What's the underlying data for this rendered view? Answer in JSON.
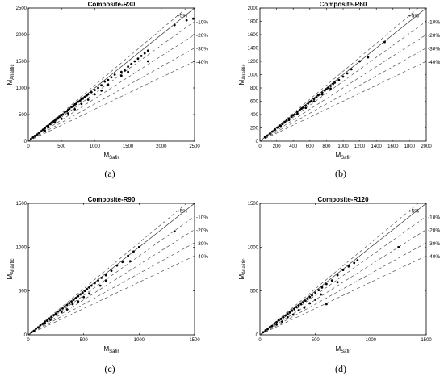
{
  "chart_data": [
    {
      "type": "scatter",
      "title": "Composite-R30",
      "xlabel": "M_Safir",
      "ylabel": "M_Analitic",
      "xlim": [
        0,
        2500
      ],
      "ylim": [
        0,
        2500
      ],
      "xticks": [
        0,
        500,
        1000,
        1500,
        2000,
        2500
      ],
      "yticks": [
        0,
        500,
        1000,
        1500,
        2000,
        2500
      ],
      "caption": "(a)",
      "reference_lines": [
        {
          "label": "+5%",
          "slope": 1.05
        },
        {
          "label": "",
          "slope": 1.0
        },
        {
          "label": "-10%",
          "slope": 0.9
        },
        {
          "label": "-20%",
          "slope": 0.8
        },
        {
          "label": "-30%",
          "slope": 0.7
        },
        {
          "label": "-40%",
          "slope": 0.6
        }
      ],
      "points": [
        [
          40,
          40
        ],
        [
          70,
          70
        ],
        [
          100,
          100
        ],
        [
          130,
          125
        ],
        [
          160,
          160
        ],
        [
          190,
          185
        ],
        [
          220,
          215
        ],
        [
          250,
          245
        ],
        [
          280,
          280
        ],
        [
          300,
          290
        ],
        [
          330,
          320
        ],
        [
          350,
          350
        ],
        [
          380,
          370
        ],
        [
          400,
          390
        ],
        [
          420,
          410
        ],
        [
          450,
          440
        ],
        [
          470,
          460
        ],
        [
          500,
          490
        ],
        [
          520,
          500
        ],
        [
          550,
          540
        ],
        [
          580,
          560
        ],
        [
          600,
          590
        ],
        [
          620,
          610
        ],
        [
          650,
          640
        ],
        [
          680,
          660
        ],
        [
          700,
          690
        ],
        [
          720,
          700
        ],
        [
          750,
          740
        ],
        [
          780,
          760
        ],
        [
          800,
          790
        ],
        [
          820,
          800
        ],
        [
          850,
          830
        ],
        [
          880,
          860
        ],
        [
          900,
          880
        ],
        [
          950,
          920
        ],
        [
          1000,
          960
        ],
        [
          1050,
          1000
        ],
        [
          1100,
          1050
        ],
        [
          1150,
          1120
        ],
        [
          1200,
          1150
        ],
        [
          1250,
          1200
        ],
        [
          1300,
          1250
        ],
        [
          1400,
          1300
        ],
        [
          1450,
          1330
        ],
        [
          1500,
          1400
        ],
        [
          1550,
          1450
        ],
        [
          1600,
          1500
        ],
        [
          1650,
          1550
        ],
        [
          1700,
          1600
        ],
        [
          1750,
          1650
        ],
        [
          1800,
          1700
        ],
        [
          2200,
          2180
        ],
        [
          2380,
          2270
        ],
        [
          2480,
          2300
        ],
        [
          300,
          260
        ],
        [
          500,
          420
        ],
        [
          700,
          600
        ],
        [
          900,
          780
        ],
        [
          1100,
          950
        ],
        [
          1500,
          1300
        ],
        [
          1800,
          1500
        ],
        [
          400,
          350
        ],
        [
          600,
          520
        ],
        [
          800,
          700
        ],
        [
          1000,
          880
        ],
        [
          1200,
          1060
        ],
        [
          1400,
          1230
        ],
        [
          250,
          200
        ]
      ]
    },
    {
      "type": "scatter",
      "title": "Composite-R60",
      "xlabel": "M_Safir",
      "ylabel": "M_Analitic",
      "xlim": [
        0,
        2000
      ],
      "ylim": [
        0,
        2000
      ],
      "xticks": [
        0,
        200,
        400,
        600,
        800,
        1000,
        1200,
        1400,
        1600,
        1800,
        2000
      ],
      "yticks": [
        0,
        200,
        400,
        600,
        800,
        1000,
        1200,
        1400,
        1600,
        1800,
        2000
      ],
      "caption": "(b)",
      "reference_lines": [
        {
          "label": "+5%",
          "slope": 1.05
        },
        {
          "label": "",
          "slope": 1.0
        },
        {
          "label": "-10%",
          "slope": 0.9
        },
        {
          "label": "-20%",
          "slope": 0.8
        },
        {
          "label": "-30%",
          "slope": 0.7
        },
        {
          "label": "-40%",
          "slope": 0.6
        }
      ],
      "points": [
        [
          60,
          60
        ],
        [
          90,
          85
        ],
        [
          120,
          115
        ],
        [
          150,
          145
        ],
        [
          180,
          175
        ],
        [
          210,
          205
        ],
        [
          240,
          235
        ],
        [
          270,
          260
        ],
        [
          300,
          290
        ],
        [
          320,
          310
        ],
        [
          350,
          340
        ],
        [
          380,
          370
        ],
        [
          400,
          390
        ],
        [
          420,
          405
        ],
        [
          450,
          440
        ],
        [
          480,
          465
        ],
        [
          500,
          490
        ],
        [
          520,
          505
        ],
        [
          550,
          535
        ],
        [
          580,
          565
        ],
        [
          600,
          590
        ],
        [
          620,
          605
        ],
        [
          650,
          635
        ],
        [
          680,
          660
        ],
        [
          700,
          690
        ],
        [
          720,
          700
        ],
        [
          750,
          730
        ],
        [
          780,
          760
        ],
        [
          800,
          780
        ],
        [
          820,
          800
        ],
        [
          850,
          830
        ],
        [
          880,
          860
        ],
        [
          900,
          880
        ],
        [
          950,
          920
        ],
        [
          1000,
          970
        ],
        [
          1050,
          1020
        ],
        [
          1100,
          1080
        ],
        [
          1200,
          1200
        ],
        [
          1300,
          1260
        ],
        [
          1500,
          1490
        ],
        [
          250,
          230
        ],
        [
          350,
          320
        ],
        [
          450,
          410
        ],
        [
          550,
          500
        ],
        [
          650,
          600
        ],
        [
          750,
          700
        ],
        [
          850,
          790
        ]
      ]
    },
    {
      "type": "scatter",
      "title": "Composite-R90",
      "xlabel": "M_Safir",
      "ylabel": "M_Analitic",
      "xlim": [
        0,
        1500
      ],
      "ylim": [
        0,
        1500
      ],
      "xticks": [
        0,
        500,
        1000,
        1500
      ],
      "yticks": [
        0,
        500,
        1000,
        1500
      ],
      "caption": "(c)",
      "reference_lines": [
        {
          "label": "+5%",
          "slope": 1.05
        },
        {
          "label": "",
          "slope": 1.0
        },
        {
          "label": "-10%",
          "slope": 0.9
        },
        {
          "label": "-20%",
          "slope": 0.8
        },
        {
          "label": "-30%",
          "slope": 0.7
        },
        {
          "label": "-40%",
          "slope": 0.6
        }
      ],
      "points": [
        [
          30,
          30
        ],
        [
          50,
          45
        ],
        [
          70,
          70
        ],
        [
          90,
          85
        ],
        [
          110,
          110
        ],
        [
          130,
          125
        ],
        [
          150,
          150
        ],
        [
          170,
          160
        ],
        [
          190,
          185
        ],
        [
          210,
          200
        ],
        [
          230,
          225
        ],
        [
          250,
          240
        ],
        [
          270,
          265
        ],
        [
          290,
          280
        ],
        [
          310,
          300
        ],
        [
          330,
          320
        ],
        [
          350,
          340
        ],
        [
          370,
          360
        ],
        [
          390,
          380
        ],
        [
          410,
          400
        ],
        [
          430,
          420
        ],
        [
          450,
          440
        ],
        [
          470,
          460
        ],
        [
          490,
          480
        ],
        [
          510,
          500
        ],
        [
          530,
          520
        ],
        [
          550,
          540
        ],
        [
          570,
          560
        ],
        [
          600,
          590
        ],
        [
          630,
          620
        ],
        [
          660,
          650
        ],
        [
          700,
          680
        ],
        [
          750,
          730
        ],
        [
          800,
          790
        ],
        [
          850,
          830
        ],
        [
          900,
          900
        ],
        [
          950,
          950
        ],
        [
          1000,
          1000
        ],
        [
          920,
          840
        ],
        [
          1320,
          1180
        ],
        [
          200,
          170
        ],
        [
          300,
          260
        ],
        [
          400,
          350
        ],
        [
          500,
          430
        ],
        [
          350,
          290
        ],
        [
          450,
          380
        ],
        [
          550,
          470
        ],
        [
          650,
          560
        ],
        [
          250,
          230
        ],
        [
          150,
          130
        ],
        [
          700,
          620
        ]
      ]
    },
    {
      "type": "scatter",
      "title": "Composite-R120",
      "xlabel": "M_Safir",
      "ylabel": "M_Analitic",
      "xlim": [
        0,
        1500
      ],
      "ylim": [
        0,
        1500
      ],
      "xticks": [
        0,
        500,
        1000,
        1500
      ],
      "yticks": [
        0,
        500,
        1000,
        1500
      ],
      "caption": "(d)",
      "reference_lines": [
        {
          "label": "+5%",
          "slope": 1.05
        },
        {
          "label": "",
          "slope": 1.0
        },
        {
          "label": "-10%",
          "slope": 0.9
        },
        {
          "label": "-20%",
          "slope": 0.8
        },
        {
          "label": "-30%",
          "slope": 0.7
        },
        {
          "label": "-40%",
          "slope": 0.6
        }
      ],
      "points": [
        [
          30,
          30
        ],
        [
          50,
          50
        ],
        [
          70,
          65
        ],
        [
          90,
          90
        ],
        [
          110,
          100
        ],
        [
          130,
          125
        ],
        [
          150,
          145
        ],
        [
          170,
          165
        ],
        [
          190,
          180
        ],
        [
          210,
          200
        ],
        [
          230,
          220
        ],
        [
          250,
          240
        ],
        [
          270,
          255
        ],
        [
          290,
          275
        ],
        [
          310,
          295
        ],
        [
          330,
          315
        ],
        [
          350,
          335
        ],
        [
          370,
          350
        ],
        [
          390,
          370
        ],
        [
          410,
          390
        ],
        [
          430,
          410
        ],
        [
          450,
          430
        ],
        [
          470,
          450
        ],
        [
          500,
          480
        ],
        [
          530,
          510
        ],
        [
          560,
          540
        ],
        [
          600,
          580
        ],
        [
          650,
          620
        ],
        [
          700,
          680
        ],
        [
          750,
          740
        ],
        [
          800,
          780
        ],
        [
          850,
          820
        ],
        [
          880,
          850
        ],
        [
          1250,
          1000
        ],
        [
          600,
          350
        ],
        [
          200,
          150
        ],
        [
          300,
          230
        ],
        [
          400,
          310
        ],
        [
          500,
          400
        ],
        [
          250,
          200
        ],
        [
          350,
          280
        ],
        [
          450,
          360
        ],
        [
          150,
          120
        ],
        [
          700,
          600
        ],
        [
          550,
          460
        ]
      ]
    }
  ]
}
